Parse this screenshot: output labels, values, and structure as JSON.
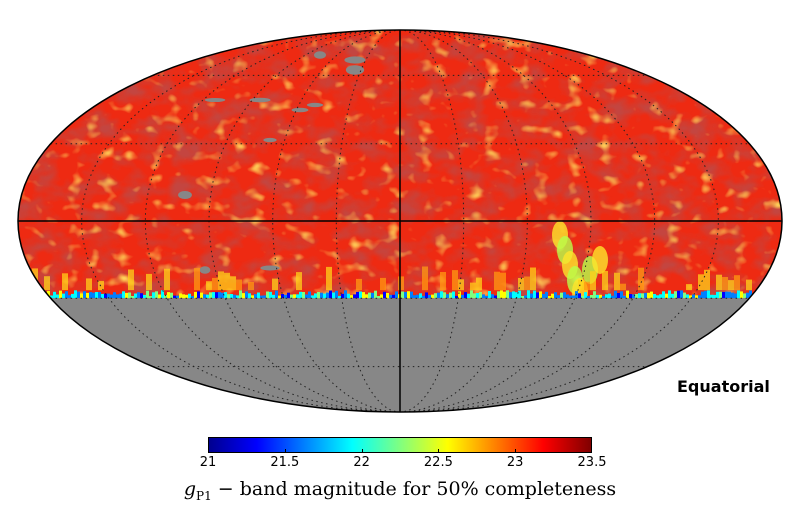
{
  "map": {
    "projection": "mollweide",
    "frame_label": "Equatorial",
    "graticule": {
      "meridian_step_deg": 30,
      "parallel_step_deg": 30
    },
    "masked_below_dec_deg": -30,
    "masked_color": "#878787",
    "field_low_color": "#ee2a12",
    "field_high_color": "#8c0f10"
  },
  "colorbar": {
    "min": 21,
    "max": 23.5,
    "ticks": [
      "21",
      "21.5",
      "22",
      "22.5",
      "23",
      "23.5"
    ],
    "tick_values": [
      21,
      21.5,
      22,
      22.5,
      23,
      23.5
    ],
    "colormap": "jet",
    "label_symbol": "g",
    "label_subscript": "P1",
    "label_text": " − band magnitude for 50% completeness"
  }
}
